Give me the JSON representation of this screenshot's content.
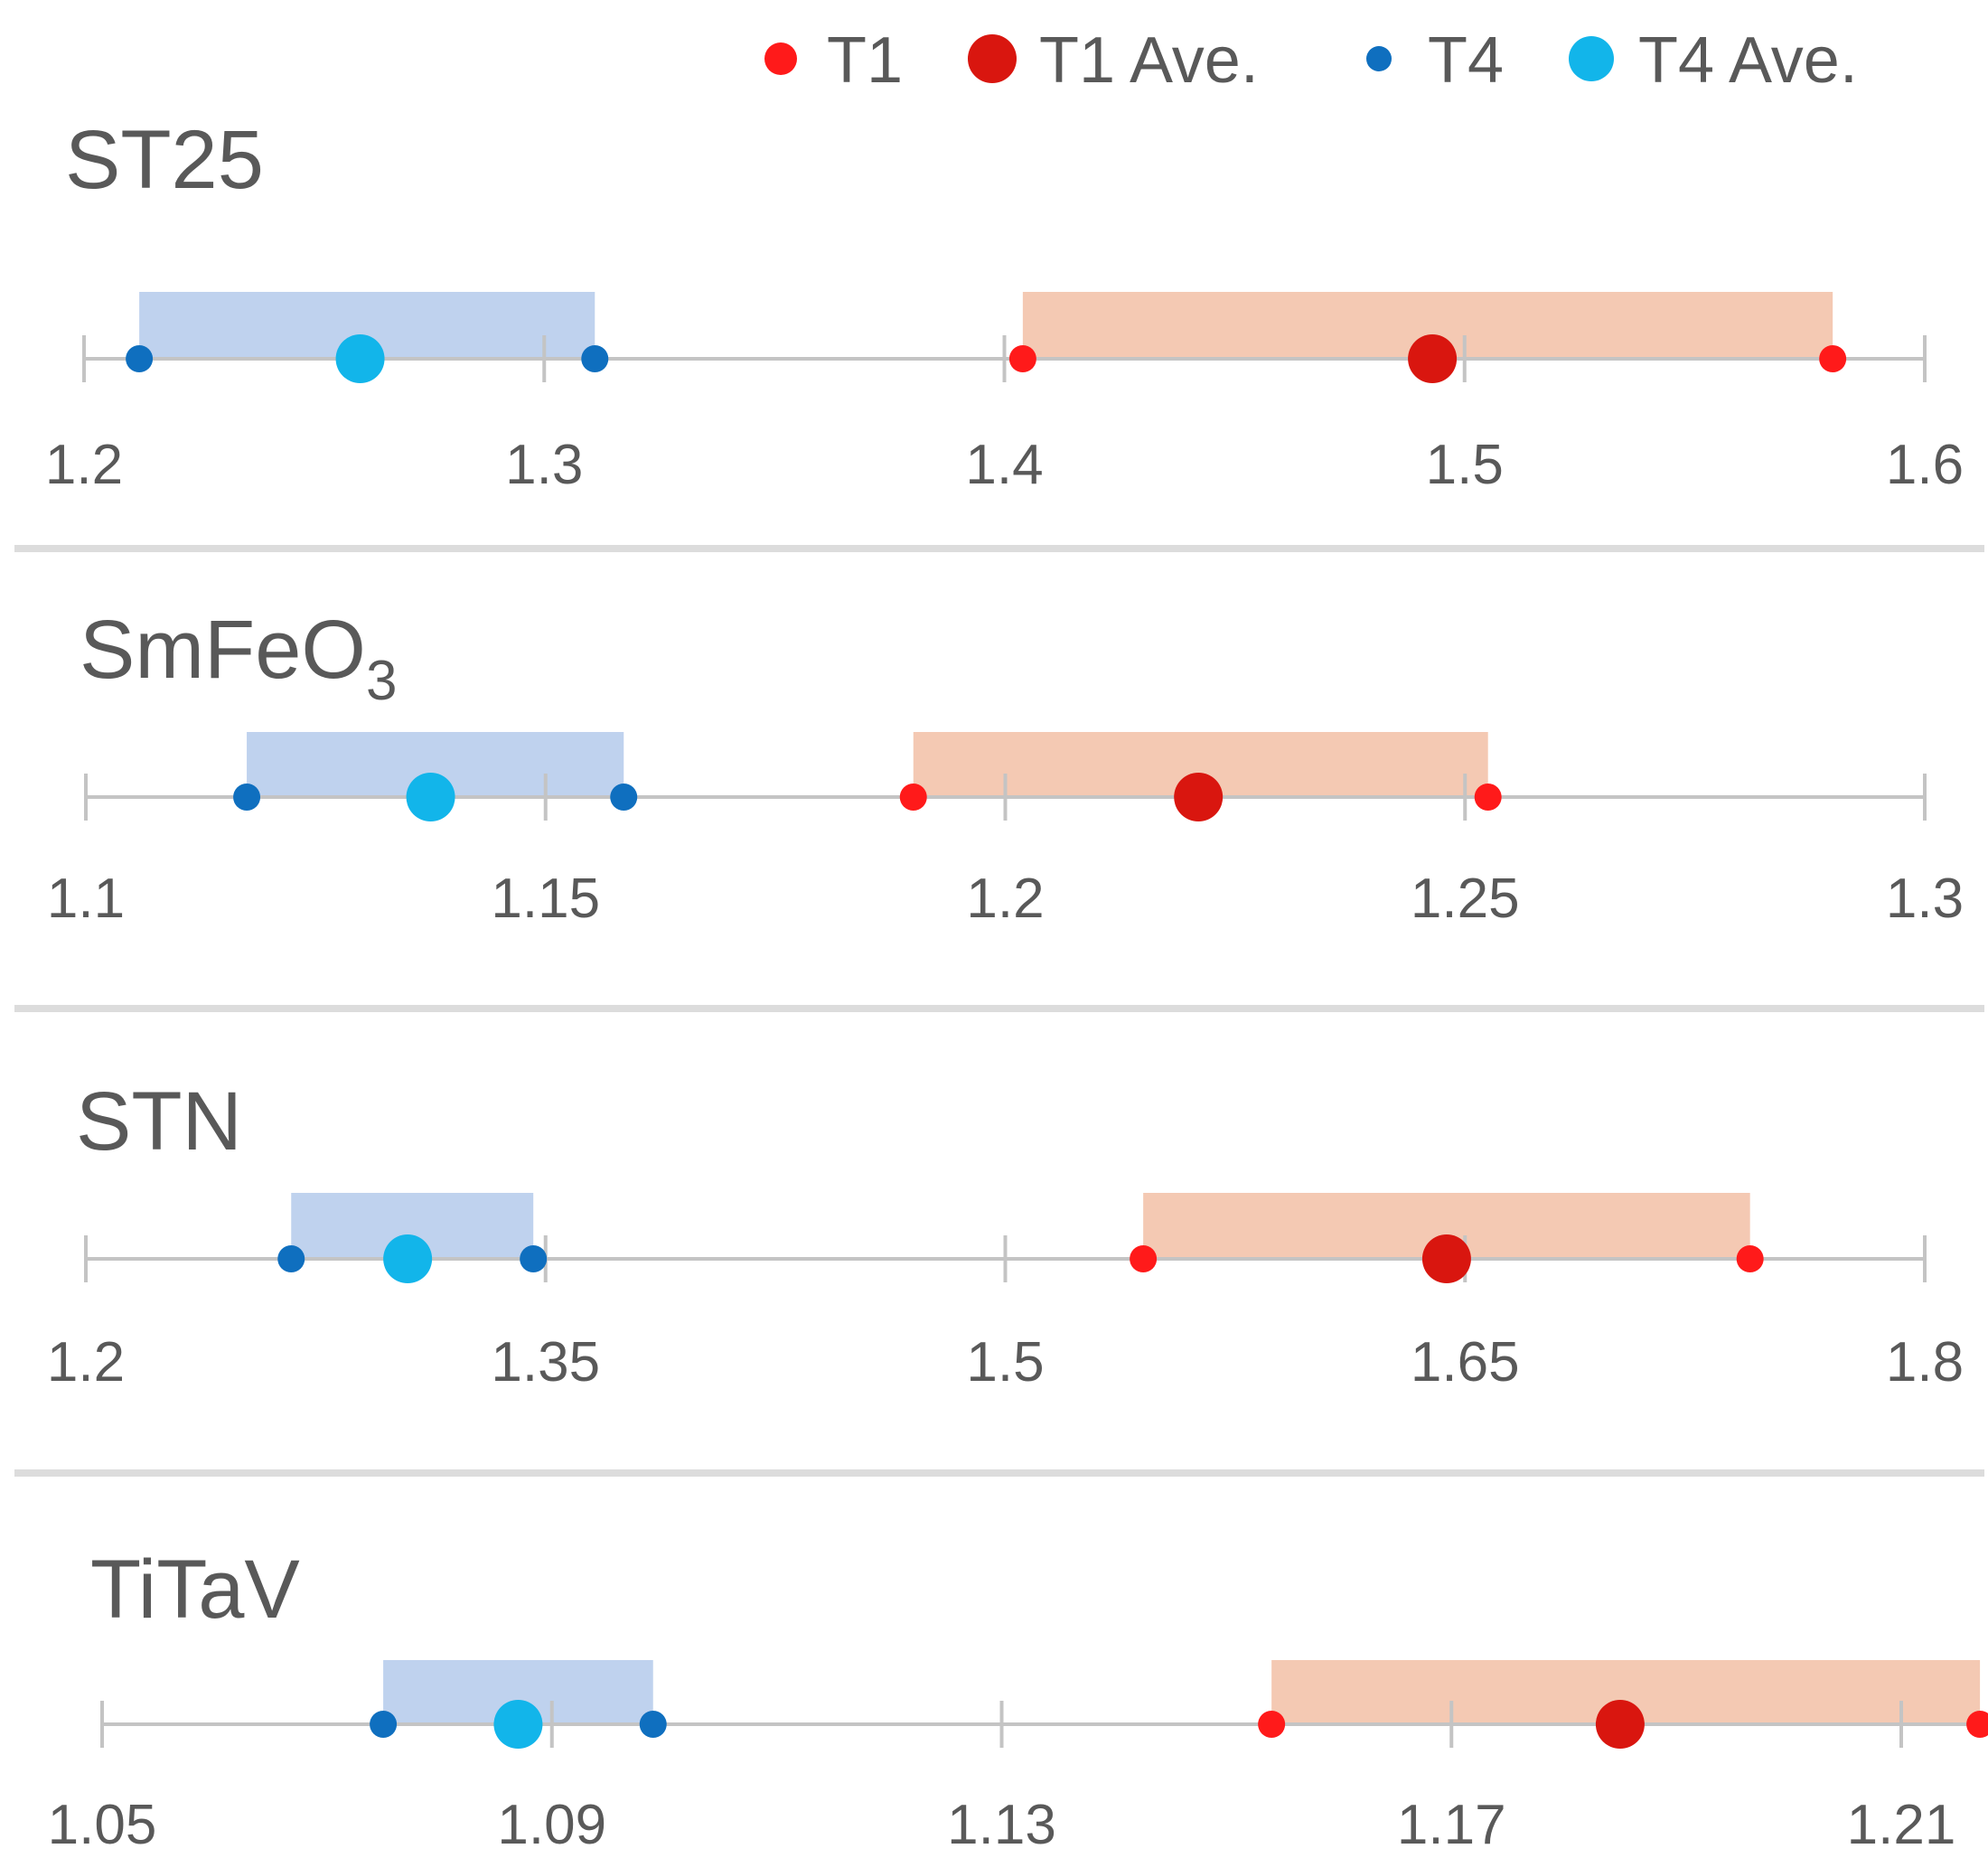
{
  "colors": {
    "t1": "#ff1a1a",
    "t1_ave": "#d9160f",
    "t4": "#0f6fbf",
    "t4_ave": "#12b5ea",
    "t1_band": "#f4c9b3",
    "t4_band": "#bfd2ee",
    "axis": "#c4c4c4",
    "separator": "#dcdcdc",
    "text": "#595959"
  },
  "legend": {
    "t1_label": "T1",
    "t1_ave_label": "T1 Ave.",
    "t4_label": "T4",
    "t4_ave_label": "T4 Ave."
  },
  "chart_data": [
    {
      "type": "range-dot",
      "title": "ST25",
      "title_subscript": "",
      "xlim": [
        1.2,
        1.6
      ],
      "ticks": [
        1.2,
        1.3,
        1.4,
        1.5,
        1.6
      ],
      "tick_labels": [
        "1.2",
        "1.3",
        "1.4",
        "1.5",
        "1.6"
      ],
      "series": [
        {
          "name": "T4",
          "min": 1.212,
          "max": 1.311,
          "ave": 1.26
        },
        {
          "name": "T1",
          "min": 1.404,
          "max": 1.58,
          "ave": 1.493
        }
      ]
    },
    {
      "type": "range-dot",
      "title": "SmFeO",
      "title_subscript": "3",
      "xlim": [
        1.1,
        1.3
      ],
      "ticks": [
        1.1,
        1.15,
        1.2,
        1.25,
        1.3
      ],
      "tick_labels": [
        "1.1",
        "1.15",
        "1.2",
        "1.25",
        "1.3"
      ],
      "series": [
        {
          "name": "T4",
          "min": 1.1175,
          "max": 1.1585,
          "ave": 1.1375
        },
        {
          "name": "T1",
          "min": 1.19,
          "max": 1.2525,
          "ave": 1.221
        }
      ]
    },
    {
      "type": "range-dot",
      "title": "STN",
      "title_subscript": "",
      "xlim": [
        1.2,
        1.8
      ],
      "ticks": [
        1.2,
        1.35,
        1.5,
        1.65,
        1.8
      ],
      "tick_labels": [
        "1.2",
        "1.35",
        "1.5",
        "1.65",
        "1.8"
      ],
      "series": [
        {
          "name": "T4",
          "min": 1.267,
          "max": 1.346,
          "ave": 1.305
        },
        {
          "name": "T1",
          "min": 1.545,
          "max": 1.743,
          "ave": 1.644
        }
      ]
    },
    {
      "type": "range-dot",
      "title": "TiTaV",
      "title_subscript": "",
      "xlim": [
        1.05,
        1.225
      ],
      "ticks": [
        1.05,
        1.09,
        1.13,
        1.17,
        1.21
      ],
      "tick_labels": [
        "1.05",
        "1.09",
        "1.13",
        "1.17",
        "1.21"
      ],
      "series": [
        {
          "name": "T4",
          "min": 1.075,
          "max": 1.099,
          "ave": 1.087
        },
        {
          "name": "T1",
          "min": 1.154,
          "max": 1.217,
          "ave": 1.185
        }
      ]
    }
  ]
}
